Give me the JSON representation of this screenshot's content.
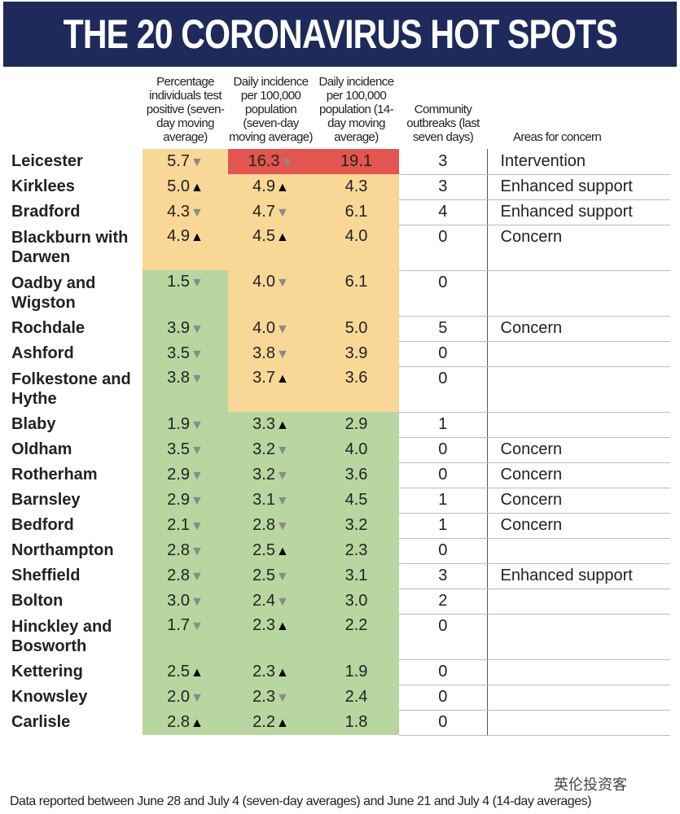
{
  "header": {
    "title": "THE 20 CORONAVIRUS HOT SPOTS"
  },
  "table": {
    "columns": [
      "",
      "Percentage individuals test positive (seven-day moving average)",
      "Daily incidence per 100,000 population (seven-day moving average)",
      "Daily incidence per 100,000 population (14-day moving average)",
      "Community outbreaks (last seven days)",
      "Areas for concern"
    ],
    "colors": {
      "amber": "#f9d797",
      "green": "#b8d6a0",
      "red": "#e2564f"
    },
    "arrow_colors": {
      "▲": "#000000",
      "▼": "#8a8a8a"
    },
    "rows": [
      {
        "name": "Leicester",
        "cells": [
          {
            "value": "5.7",
            "arrow": "▼",
            "color": "amber"
          },
          {
            "value": "16.3",
            "arrow": "▼",
            "color": "red"
          },
          {
            "value": "19.1",
            "color": "red"
          }
        ],
        "outbreaks": "3",
        "concern": "Intervention"
      },
      {
        "name": "Kirklees",
        "cells": [
          {
            "value": "5.0",
            "arrow": "▲",
            "color": "amber"
          },
          {
            "value": "4.9",
            "arrow": "▲",
            "color": "amber"
          },
          {
            "value": "4.3",
            "color": "amber"
          }
        ],
        "outbreaks": "3",
        "concern": "Enhanced support"
      },
      {
        "name": "Bradford",
        "cells": [
          {
            "value": "4.3",
            "arrow": "▼",
            "color": "amber"
          },
          {
            "value": "4.7",
            "arrow": "▼",
            "color": "amber"
          },
          {
            "value": "6.1",
            "color": "amber"
          }
        ],
        "outbreaks": "4",
        "concern": "Enhanced support"
      },
      {
        "name": "Blackburn with Darwen",
        "cells": [
          {
            "value": "4.9",
            "arrow": "▲",
            "color": "amber"
          },
          {
            "value": "4.5",
            "arrow": "▲",
            "color": "amber"
          },
          {
            "value": "4.0",
            "color": "amber"
          }
        ],
        "outbreaks": "0",
        "concern": "Concern"
      },
      {
        "name": "Oadby and Wigston",
        "cells": [
          {
            "value": "1.5",
            "arrow": "▼",
            "color": "green"
          },
          {
            "value": "4.0",
            "arrow": "▼",
            "color": "amber"
          },
          {
            "value": "6.1",
            "color": "amber"
          }
        ],
        "outbreaks": "0"
      },
      {
        "name": "Rochdale",
        "cells": [
          {
            "value": "3.9",
            "arrow": "▼",
            "color": "green"
          },
          {
            "value": "4.0",
            "arrow": "▼",
            "color": "amber"
          },
          {
            "value": "5.0",
            "color": "amber"
          }
        ],
        "outbreaks": "5",
        "concern": "Concern"
      },
      {
        "name": "Ashford",
        "cells": [
          {
            "value": "3.5",
            "arrow": "▼",
            "color": "green"
          },
          {
            "value": "3.8",
            "arrow": "▼",
            "color": "amber"
          },
          {
            "value": "3.9",
            "color": "amber"
          }
        ],
        "outbreaks": "0"
      },
      {
        "name": "Folkestone and Hythe",
        "cells": [
          {
            "value": "3.8",
            "arrow": "▼",
            "color": "green"
          },
          {
            "value": "3.7",
            "arrow": "▲",
            "color": "amber"
          },
          {
            "value": "3.6",
            "color": "amber"
          }
        ],
        "outbreaks": "0"
      },
      {
        "name": "Blaby",
        "cells": [
          {
            "value": "1.9",
            "arrow": "▼",
            "color": "green"
          },
          {
            "value": "3.3",
            "arrow": "▲",
            "color": "green"
          },
          {
            "value": "2.9",
            "color": "green"
          }
        ],
        "outbreaks": "1"
      },
      {
        "name": "Oldham",
        "cells": [
          {
            "value": "3.5",
            "arrow": "▼",
            "color": "green"
          },
          {
            "value": "3.2",
            "arrow": "▼",
            "color": "green"
          },
          {
            "value": "4.0",
            "color": "green"
          }
        ],
        "outbreaks": "0",
        "concern": "Concern"
      },
      {
        "name": "Rotherham",
        "cells": [
          {
            "value": "2.9",
            "arrow": "▼",
            "color": "green"
          },
          {
            "value": "3.2",
            "arrow": "▼",
            "color": "green"
          },
          {
            "value": "3.6",
            "color": "green"
          }
        ],
        "outbreaks": "0",
        "concern": "Concern"
      },
      {
        "name": "Barnsley",
        "cells": [
          {
            "value": "2.9",
            "arrow": "▼",
            "color": "green"
          },
          {
            "value": "3.1",
            "arrow": "▼",
            "color": "green"
          },
          {
            "value": "4.5",
            "color": "green"
          }
        ],
        "outbreaks": "1",
        "concern": "Concern"
      },
      {
        "name": "Bedford",
        "cells": [
          {
            "value": "2.1",
            "arrow": "▼",
            "color": "green"
          },
          {
            "value": "2.8",
            "arrow": "▼",
            "color": "green"
          },
          {
            "value": "3.2",
            "color": "green"
          }
        ],
        "outbreaks": "1",
        "concern": "Concern"
      },
      {
        "name": "Northampton",
        "cells": [
          {
            "value": "2.8",
            "arrow": "▼",
            "color": "green"
          },
          {
            "value": "2.5",
            "arrow": "▲",
            "color": "green"
          },
          {
            "value": "2.3",
            "color": "green"
          }
        ],
        "outbreaks": "0"
      },
      {
        "name": "Sheffield",
        "cells": [
          {
            "value": "2.8",
            "arrow": "▼",
            "color": "green"
          },
          {
            "value": "2.5",
            "arrow": "▼",
            "color": "green"
          },
          {
            "value": "3.1",
            "color": "green"
          }
        ],
        "outbreaks": "3",
        "concern": "Enhanced support"
      },
      {
        "name": "Bolton",
        "cells": [
          {
            "value": "3.0",
            "arrow": "▼",
            "color": "green"
          },
          {
            "value": "2.4",
            "arrow": "▼",
            "color": "green"
          },
          {
            "value": "3.0",
            "color": "green"
          }
        ],
        "outbreaks": "2"
      },
      {
        "name": "Hinckley and Bosworth",
        "cells": [
          {
            "value": "1.7",
            "arrow": "▼",
            "color": "green"
          },
          {
            "value": "2.3",
            "arrow": "▲",
            "color": "green"
          },
          {
            "value": "2.2",
            "color": "green"
          }
        ],
        "outbreaks": "0"
      },
      {
        "name": "Kettering",
        "cells": [
          {
            "value": "2.5",
            "arrow": "▲",
            "color": "green"
          },
          {
            "value": "2.3",
            "arrow": "▲",
            "color": "green"
          },
          {
            "value": "1.9",
            "color": "green"
          }
        ],
        "outbreaks": "0"
      },
      {
        "name": "Knowsley",
        "cells": [
          {
            "value": "2.0",
            "arrow": "▼",
            "color": "green"
          },
          {
            "value": "2.3",
            "arrow": "▼",
            "color": "green"
          },
          {
            "value": "2.4",
            "color": "green"
          }
        ],
        "outbreaks": "0"
      },
      {
        "name": "Carlisle",
        "cells": [
          {
            "value": "2.8",
            "arrow": "▲",
            "color": "green"
          },
          {
            "value": "2.2",
            "arrow": "▲",
            "color": "green"
          },
          {
            "value": "1.8",
            "color": "green"
          }
        ],
        "outbreaks": "0"
      }
    ]
  },
  "footnote": "Data reported between June 28 and July 4 (seven-day averages) and June 21 and July 4 (14-day averages)",
  "watermark": "英伦投资客"
}
